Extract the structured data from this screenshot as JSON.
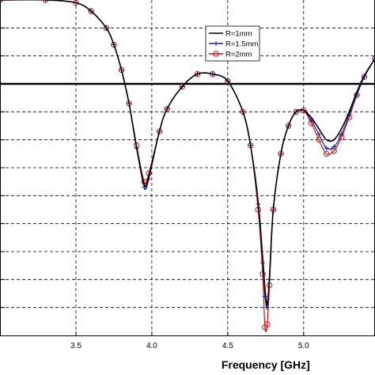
{
  "chart_data": {
    "type": "line",
    "title": "",
    "xlabel": "Frequency [GHz]",
    "ylabel": "",
    "xlim": [
      3.0,
      5.47
    ],
    "x_ticks": [
      3.5,
      4.0,
      4.5,
      5.0
    ],
    "x_tick_labels": [
      "3.5",
      "4.0",
      "4.5",
      "5.0"
    ],
    "ylim": [
      0,
      12
    ],
    "grid": true,
    "grid_style": "dashed",
    "y_tick_labels_visible": false,
    "legend_position": "top-right",
    "reference_line": {
      "y": 9.0,
      "color": "#000000"
    },
    "series": [
      {
        "name": "R=1mm",
        "color": "#000000",
        "marker": "none",
        "x": [
          3.0,
          3.3,
          3.5,
          3.6,
          3.7,
          3.75,
          3.8,
          3.85,
          3.9,
          3.95,
          3.98,
          4.05,
          4.1,
          4.2,
          4.3,
          4.4,
          4.5,
          4.6,
          4.65,
          4.7,
          4.73,
          4.745,
          4.76,
          4.775,
          4.8,
          4.85,
          4.9,
          4.95,
          5.0,
          5.05,
          5.1,
          5.15,
          5.2,
          5.25,
          5.3,
          5.35,
          5.4,
          5.47
        ],
        "y": [
          12.0,
          12.0,
          11.9,
          11.6,
          11.0,
          10.4,
          9.5,
          8.3,
          6.7,
          5.4,
          5.7,
          7.3,
          8.1,
          8.9,
          9.35,
          9.35,
          9.1,
          8.0,
          6.8,
          4.8,
          2.8,
          1.7,
          1.1,
          2.1,
          4.5,
          6.5,
          7.5,
          8.0,
          8.05,
          7.8,
          7.4,
          7.0,
          7.0,
          7.4,
          8.0,
          8.7,
          9.3,
          9.9
        ]
      },
      {
        "name": "R=1.5mm",
        "color": "#1f1fa0",
        "marker": "plus",
        "x": [
          3.0,
          3.3,
          3.5,
          3.6,
          3.7,
          3.75,
          3.8,
          3.85,
          3.9,
          3.95,
          3.98,
          4.05,
          4.1,
          4.2,
          4.3,
          4.4,
          4.5,
          4.6,
          4.65,
          4.7,
          4.73,
          4.745,
          4.76,
          4.775,
          4.8,
          4.85,
          4.9,
          4.95,
          5.0,
          5.05,
          5.1,
          5.15,
          5.2,
          5.25,
          5.3,
          5.35,
          5.4,
          5.47
        ],
        "y": [
          12.0,
          12.0,
          11.9,
          11.6,
          11.0,
          10.4,
          9.5,
          8.3,
          6.7,
          5.3,
          5.6,
          7.3,
          8.1,
          8.9,
          9.35,
          9.35,
          9.1,
          8.0,
          6.8,
          4.7,
          2.6,
          1.4,
          1.0,
          2.0,
          4.5,
          6.5,
          7.5,
          8.0,
          8.05,
          7.7,
          7.2,
          6.7,
          6.75,
          7.2,
          7.9,
          8.6,
          9.25,
          9.9
        ]
      },
      {
        "name": "R=2mm",
        "color": "#d01818",
        "marker": "circle",
        "x": [
          3.0,
          3.3,
          3.5,
          3.6,
          3.7,
          3.75,
          3.8,
          3.85,
          3.9,
          3.95,
          3.98,
          4.05,
          4.1,
          4.2,
          4.3,
          4.4,
          4.5,
          4.6,
          4.65,
          4.7,
          4.73,
          4.745,
          4.76,
          4.775,
          4.8,
          4.85,
          4.9,
          4.95,
          5.0,
          5.05,
          5.1,
          5.15,
          5.2,
          5.25,
          5.3,
          5.35,
          5.4,
          5.47
        ],
        "y": [
          12.0,
          12.0,
          11.9,
          11.6,
          11.0,
          10.4,
          9.5,
          8.3,
          6.8,
          5.5,
          5.8,
          7.3,
          8.1,
          8.9,
          9.35,
          9.35,
          9.1,
          8.0,
          6.8,
          4.5,
          2.2,
          0.3,
          0.4,
          1.8,
          4.5,
          6.5,
          7.5,
          8.0,
          8.05,
          7.6,
          7.0,
          6.5,
          6.6,
          7.1,
          7.8,
          8.6,
          9.25,
          9.9
        ]
      }
    ]
  }
}
